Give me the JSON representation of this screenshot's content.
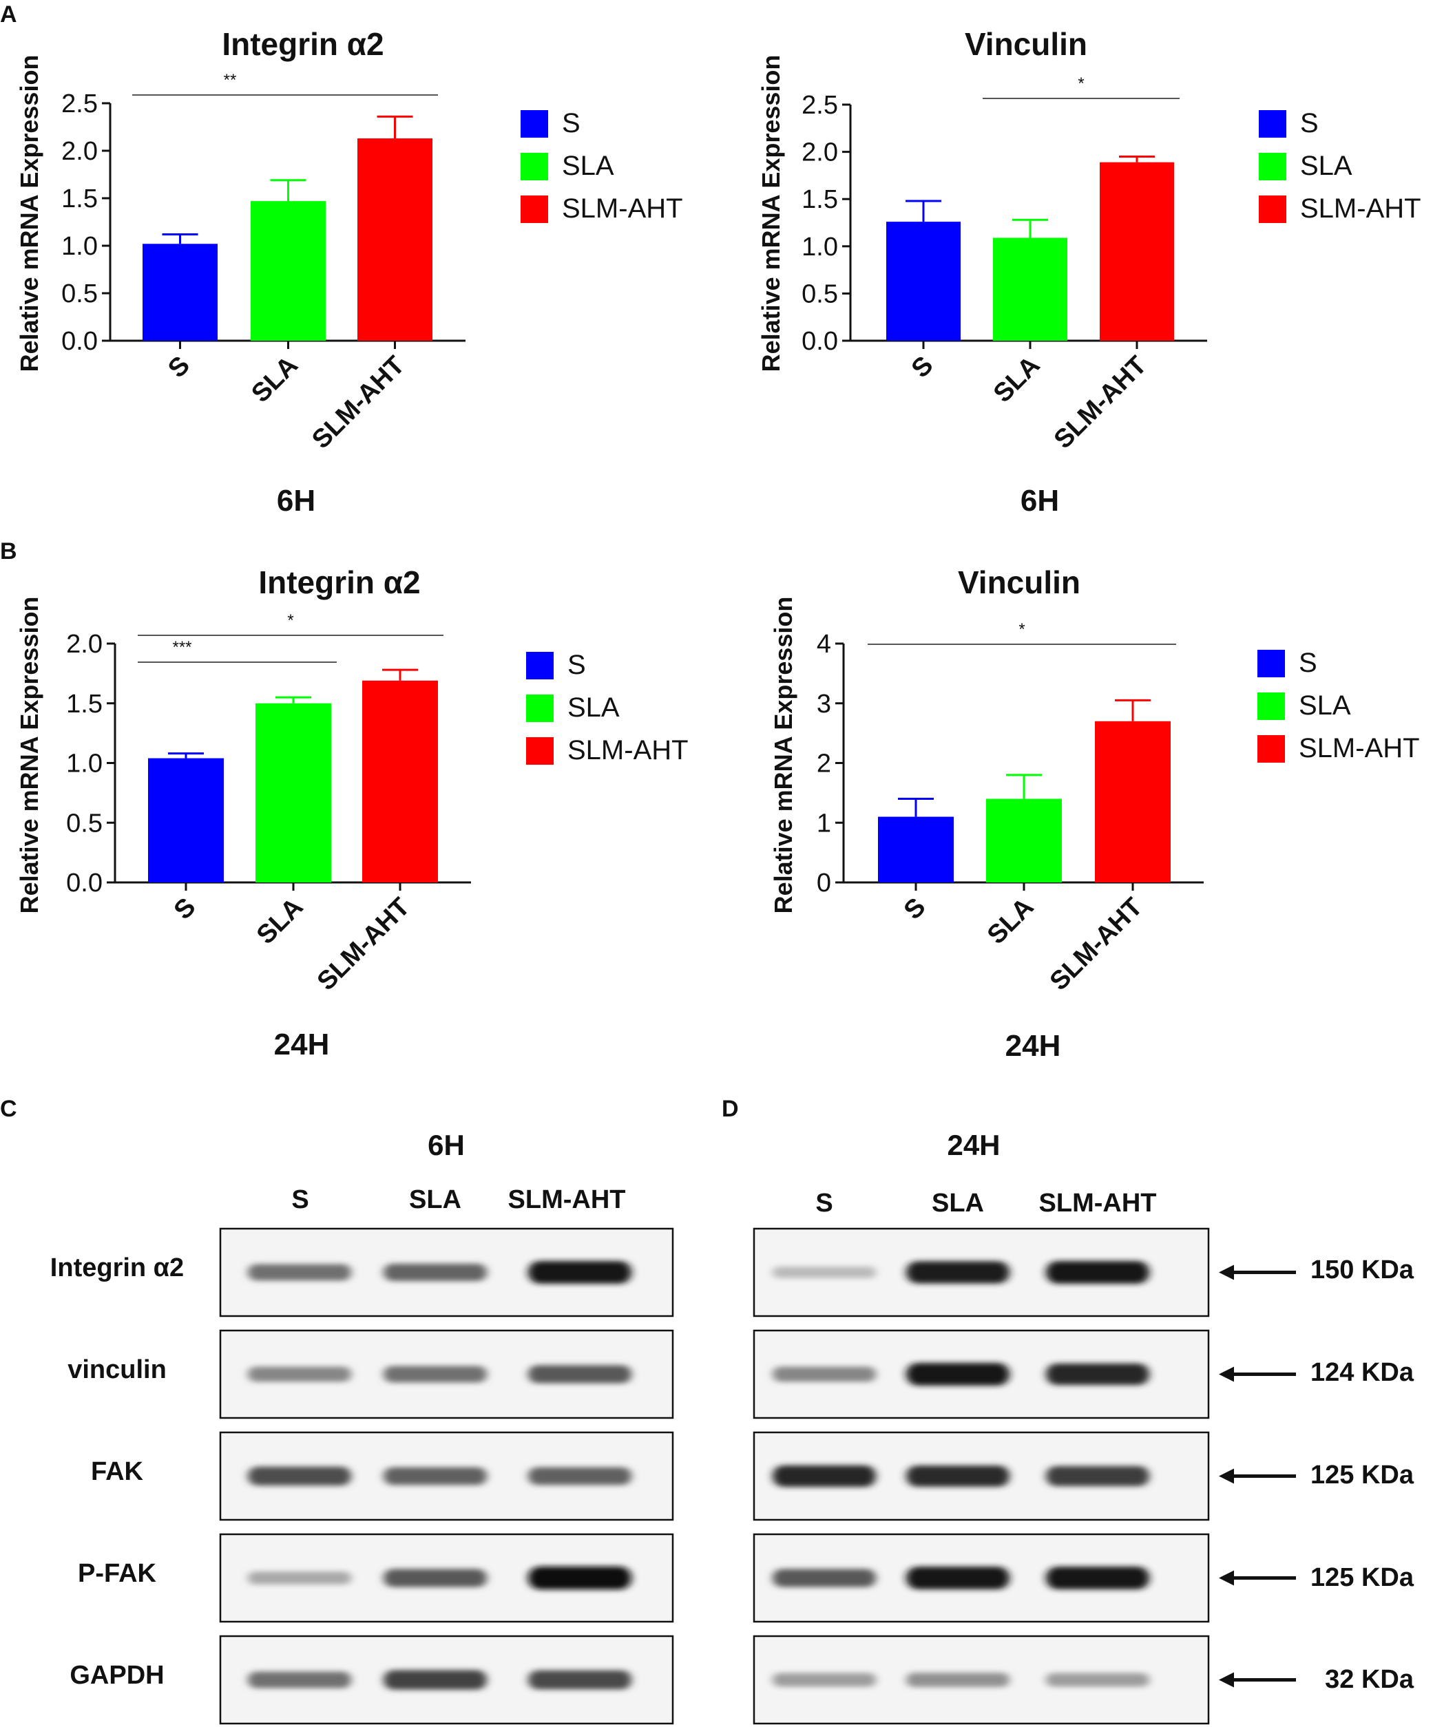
{
  "colors": {
    "S": "#0000ff",
    "SLA": "#00ff00",
    "SLM-AHT": "#ff0000",
    "axis": "#111111"
  },
  "panels": [
    {
      "letter": "A"
    },
    {
      "letter": "B"
    },
    {
      "letter": "C",
      "time_label": "6H",
      "lanes": [
        "S",
        "SLA",
        "SLM-AHT"
      ],
      "rows": [
        "Integrin α2",
        "vinculin",
        "FAK",
        "P-FAK",
        "GAPDH"
      ]
    },
    {
      "letter": "D",
      "time_label": "24H",
      "lanes": [
        "S",
        "SLA",
        "SLM-AHT"
      ],
      "sizes": [
        "150 KDa",
        "124 KDa",
        "125 KDa",
        "125 KDa",
        "32 KDa"
      ]
    }
  ],
  "chart_data": [
    {
      "type": "bar",
      "panel": "A",
      "title": "Integrin α2",
      "ylabel": "Relative  mRNA Expression",
      "xlabel": "6H",
      "categories": [
        "S",
        "SLA",
        "SLM-AHT"
      ],
      "values": [
        1.02,
        1.47,
        2.13
      ],
      "errors": [
        0.1,
        0.22,
        0.23
      ],
      "ylim": [
        0,
        2.5
      ],
      "yticks": [
        "0.0",
        "0.5",
        "1.0",
        "1.5",
        "2.0",
        "2.5"
      ],
      "legend": [
        "S",
        "SLA",
        "SLM-AHT"
      ],
      "significance": [
        {
          "label": "**",
          "from": "S",
          "to": "SLM-AHT"
        }
      ]
    },
    {
      "type": "bar",
      "panel": "A",
      "title": "Vinculin",
      "ylabel": "Relative  mRNA Expression",
      "xlabel": "6H",
      "categories": [
        "S",
        "SLA",
        "SLM-AHT"
      ],
      "values": [
        1.26,
        1.09,
        1.89
      ],
      "errors": [
        0.22,
        0.19,
        0.06
      ],
      "ylim": [
        0,
        2.5
      ],
      "yticks": [
        "0.0",
        "0.5",
        "1.0",
        "1.5",
        "2.0",
        "2.5"
      ],
      "legend": [
        "S",
        "SLA",
        "SLM-AHT"
      ],
      "significance": [
        {
          "label": "*",
          "from": "SLA",
          "to": "SLM-AHT"
        }
      ]
    },
    {
      "type": "bar",
      "panel": "B",
      "title": "Integrin α2",
      "ylabel": "Relative  mRNA Expression",
      "xlabel": "24H",
      "categories": [
        "S",
        "SLA",
        "SLM-AHT"
      ],
      "values": [
        1.04,
        1.5,
        1.69
      ],
      "errors": [
        0.04,
        0.05,
        0.09
      ],
      "ylim": [
        0,
        2.0
      ],
      "yticks": [
        "0.0",
        "0.5",
        "1.0",
        "1.5",
        "2.0"
      ],
      "legend": [
        "S",
        "SLA",
        "SLM-AHT"
      ],
      "significance": [
        {
          "label": "*",
          "from": "S",
          "to": "SLM-AHT"
        },
        {
          "label": "***",
          "from": "S",
          "to": "SLA"
        }
      ]
    },
    {
      "type": "bar",
      "panel": "B",
      "title": "Vinculin",
      "ylabel": "Relative  mRNA Expression",
      "xlabel": "24H",
      "categories": [
        "S",
        "SLA",
        "SLM-AHT"
      ],
      "values": [
        1.1,
        1.4,
        2.7
      ],
      "errors": [
        0.3,
        0.4,
        0.35
      ],
      "ylim": [
        0,
        4
      ],
      "yticks": [
        "0",
        "1",
        "2",
        "3",
        "4"
      ],
      "legend": [
        "S",
        "SLA",
        "SLM-AHT"
      ],
      "significance": [
        {
          "label": "*",
          "from": "S",
          "to": "SLM-AHT"
        }
      ]
    }
  ],
  "blots": {
    "C": [
      [
        0.55,
        0.6,
        0.95
      ],
      [
        0.45,
        0.55,
        0.65
      ],
      [
        0.7,
        0.62,
        0.62
      ],
      [
        0.3,
        0.65,
        0.98
      ],
      [
        0.55,
        0.75,
        0.72
      ]
    ],
    "D": [
      [
        0.22,
        0.92,
        0.95
      ],
      [
        0.45,
        0.95,
        0.88
      ],
      [
        0.88,
        0.85,
        0.78
      ],
      [
        0.65,
        0.95,
        0.95
      ],
      [
        0.35,
        0.4,
        0.35
      ]
    ]
  }
}
